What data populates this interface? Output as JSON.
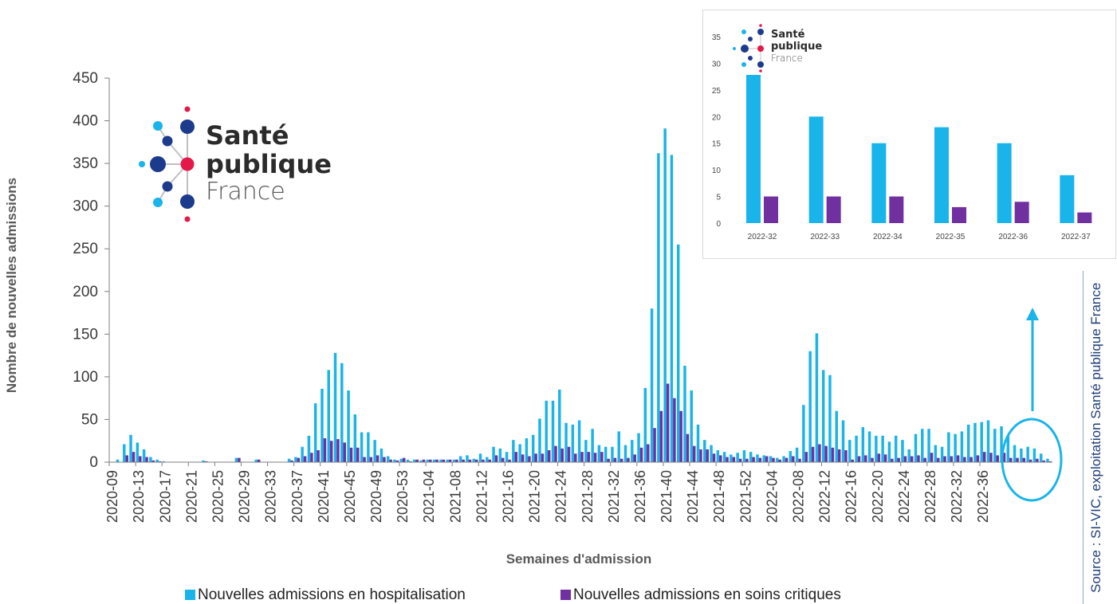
{
  "main_logo": {
    "line1": "Santé",
    "line2": "publique",
    "line3": "France"
  },
  "inset_logo": {
    "line1": "Santé",
    "line2": "publique",
    "line3": "France"
  },
  "source_text": "Source : SI-VIC, exploitation Santé publique France",
  "colors": {
    "hospitalisation": "#19b4ea",
    "soins_critiques": "#7030a0",
    "highlight": "#19b4ea",
    "axis": "#595959"
  },
  "chart_data": [
    {
      "type": "bar",
      "ylabel": "Nombre de nouvelles admissions",
      "xlabel": "Semaines d'admission",
      "ylim": [
        0,
        450
      ],
      "yticks": [
        0,
        50,
        100,
        150,
        200,
        250,
        300,
        350,
        400,
        450
      ],
      "x_tick_labels": [
        "2020-09",
        "2020-13",
        "2020-17",
        "2020-21",
        "2020-25",
        "2020-29",
        "2020-33",
        "2020-37",
        "2020-41",
        "2020-45",
        "2020-49",
        "2020-53",
        "2021-04",
        "2021-08",
        "2021-12",
        "2021-16",
        "2021-20",
        "2021-24",
        "2021-28",
        "2021-32",
        "2021-36",
        "2021-40",
        "2021-44",
        "2021-48",
        "2021-52",
        "2022-04",
        "2022-08",
        "2022-12",
        "2022-16",
        "2022-20",
        "2022-24",
        "2022-28",
        "2022-32",
        "2022-36"
      ],
      "x_tick_step": 4,
      "legend_position": "bottom",
      "series": [
        {
          "name": "Nouvelles admissions en hospitalisation",
          "values": [
            0,
            3,
            21,
            32,
            23,
            15,
            6,
            3,
            1,
            0,
            0,
            0,
            0,
            0,
            2,
            0,
            0,
            0,
            0,
            5,
            0,
            0,
            3,
            0,
            0,
            0,
            0,
            4,
            6,
            18,
            31,
            69,
            86,
            108,
            128,
            116,
            84,
            56,
            35,
            35,
            26,
            16,
            7,
            3,
            4,
            3,
            3,
            2,
            3,
            3,
            3,
            3,
            3,
            7,
            8,
            4,
            10,
            6,
            18,
            16,
            12,
            26,
            21,
            28,
            32,
            51,
            72,
            72,
            85,
            46,
            44,
            49,
            26,
            39,
            20,
            18,
            18,
            36,
            20,
            26,
            34,
            87,
            180,
            362,
            391,
            360,
            255,
            113,
            84,
            44,
            26,
            20,
            14,
            12,
            9,
            11,
            14,
            12,
            9,
            8,
            7,
            5,
            7,
            13,
            17,
            67,
            130,
            151,
            108,
            102,
            60,
            49,
            26,
            31,
            41,
            36,
            31,
            31,
            24,
            31,
            26,
            15,
            33,
            39,
            39,
            20,
            18,
            35,
            33,
            36,
            44,
            46,
            47,
            49,
            39,
            42,
            31,
            20,
            16,
            18,
            16,
            10,
            4
          ]
        },
        {
          "name": "Nouvelles admissions en soins critiques",
          "values": [
            0,
            0,
            8,
            12,
            7,
            6,
            2,
            1,
            0,
            0,
            0,
            0,
            0,
            0,
            1,
            0,
            0,
            0,
            0,
            5,
            0,
            0,
            3,
            0,
            0,
            0,
            0,
            2,
            5,
            7,
            11,
            14,
            28,
            25,
            27,
            23,
            17,
            17,
            6,
            6,
            8,
            6,
            3,
            2,
            5,
            1,
            3,
            3,
            3,
            3,
            3,
            3,
            3,
            3,
            3,
            3,
            3,
            3,
            8,
            5,
            3,
            12,
            9,
            7,
            10,
            10,
            14,
            19,
            16,
            18,
            10,
            12,
            12,
            11,
            12,
            4,
            5,
            4,
            5,
            9,
            17,
            21,
            40,
            60,
            92,
            75,
            60,
            33,
            19,
            15,
            15,
            10,
            8,
            6,
            6,
            4,
            4,
            6,
            5,
            7,
            5,
            3,
            5,
            7,
            4,
            12,
            18,
            21,
            19,
            17,
            15,
            14,
            3,
            7,
            8,
            5,
            10,
            9,
            4,
            5,
            7,
            7,
            8,
            5,
            11,
            5,
            7,
            7,
            8,
            6,
            6,
            8,
            12,
            11,
            8,
            11,
            5,
            5,
            5,
            3,
            4,
            2,
            1
          ]
        }
      ]
    },
    {
      "type": "bar",
      "categories": [
        "2022-32",
        "2022-33",
        "2022-34",
        "2022-35",
        "2022-36",
        "2022-37"
      ],
      "ylim": [
        0,
        35
      ],
      "yticks": [
        0,
        5,
        10,
        15,
        20,
        25,
        30,
        35
      ],
      "series": [
        {
          "name": "Nouvelles admissions en hospitalisation",
          "values": [
            28,
            20,
            15,
            18,
            15,
            9
          ]
        },
        {
          "name": "Nouvelles admissions en soins critiques",
          "values": [
            5,
            5,
            5,
            3,
            4,
            2
          ]
        }
      ]
    }
  ]
}
